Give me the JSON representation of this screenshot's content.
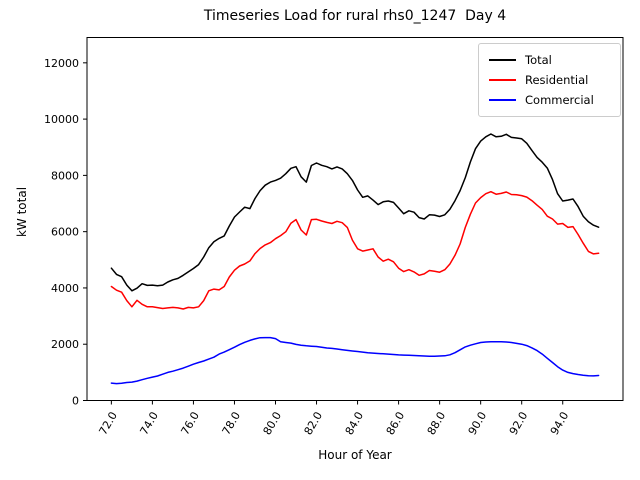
{
  "figure": {
    "title": "Timeseries Load for rural rhs0_1247  Day 4",
    "xlabel": "Hour of Year",
    "ylabel": "kW total"
  },
  "legend": {
    "items": [
      {
        "label": "Total",
        "color": "#000000"
      },
      {
        "label": "Residential",
        "color": "#ff0000"
      },
      {
        "label": "Commercial",
        "color": "#0000ff"
      }
    ]
  },
  "chart_data": {
    "type": "line",
    "title": "Timeseries Load for rural rhs0_1247  Day 4",
    "xlabel": "Hour of Year",
    "ylabel": "kW total",
    "grid": false,
    "legend_position": "upper right",
    "xlim": [
      70.8125,
      96.9375
    ],
    "ylim": [
      0,
      12900
    ],
    "xticks": [
      72,
      74,
      76,
      78,
      80,
      82,
      84,
      86,
      88,
      90,
      92,
      94
    ],
    "xtick_labels": [
      "72.0",
      "74.0",
      "76.0",
      "78.0",
      "80.0",
      "82.0",
      "84.0",
      "86.0",
      "88.0",
      "90.0",
      "92.0",
      "94.0"
    ],
    "yticks": [
      0,
      2000,
      4000,
      6000,
      8000,
      10000,
      12000
    ],
    "ytick_labels": [
      "0",
      "2000",
      "4000",
      "6000",
      "8000",
      "10000",
      "12000"
    ],
    "x": [
      72.0,
      72.25,
      72.5,
      72.75,
      73.0,
      73.25,
      73.5,
      73.75,
      74.0,
      74.25,
      74.5,
      74.75,
      75.0,
      75.25,
      75.5,
      75.75,
      76.0,
      76.25,
      76.5,
      76.75,
      77.0,
      77.25,
      77.5,
      77.75,
      78.0,
      78.25,
      78.5,
      78.75,
      79.0,
      79.25,
      79.5,
      79.75,
      80.0,
      80.25,
      80.5,
      80.75,
      81.0,
      81.25,
      81.5,
      81.75,
      82.0,
      82.25,
      82.5,
      82.75,
      83.0,
      83.25,
      83.5,
      83.75,
      84.0,
      84.25,
      84.5,
      84.75,
      85.0,
      85.25,
      85.5,
      85.75,
      86.0,
      86.25,
      86.5,
      86.75,
      87.0,
      87.25,
      87.5,
      87.75,
      88.0,
      88.25,
      88.5,
      88.75,
      89.0,
      89.25,
      89.5,
      89.75,
      90.0,
      90.25,
      90.5,
      90.75,
      91.0,
      91.25,
      91.5,
      91.75,
      92.0,
      92.25,
      92.5,
      92.75,
      93.0,
      93.25,
      93.5,
      93.75,
      94.0,
      94.25,
      94.5,
      94.75,
      95.0,
      95.25,
      95.5,
      95.75
    ],
    "series": [
      {
        "name": "Total",
        "color": "#000000",
        "values": [
          4700,
          4480,
          4400,
          4100,
          3900,
          3990,
          4150,
          4090,
          4100,
          4080,
          4100,
          4210,
          4290,
          4340,
          4450,
          4570,
          4690,
          4830,
          5100,
          5430,
          5640,
          5760,
          5850,
          6200,
          6520,
          6700,
          6870,
          6820,
          7180,
          7460,
          7650,
          7760,
          7820,
          7900,
          8060,
          8250,
          8310,
          7950,
          7760,
          8350,
          8440,
          8360,
          8310,
          8230,
          8300,
          8230,
          8060,
          7820,
          7480,
          7220,
          7270,
          7120,
          6960,
          7060,
          7090,
          7040,
          6840,
          6640,
          6740,
          6690,
          6500,
          6450,
          6600,
          6590,
          6540,
          6600,
          6800,
          7100,
          7460,
          7920,
          8480,
          8950,
          9220,
          9370,
          9470,
          9370,
          9390,
          9460,
          9350,
          9330,
          9300,
          9140,
          8880,
          8640,
          8470,
          8260,
          7850,
          7350,
          7090,
          7120,
          7160,
          6890,
          6550,
          6350,
          6230,
          6160
        ]
      },
      {
        "name": "Residential",
        "color": "#ff0000",
        "values": [
          4050,
          3920,
          3850,
          3550,
          3330,
          3560,
          3420,
          3330,
          3330,
          3300,
          3270,
          3290,
          3310,
          3290,
          3250,
          3310,
          3290,
          3330,
          3550,
          3900,
          3960,
          3930,
          4050,
          4390,
          4630,
          4780,
          4850,
          4960,
          5220,
          5400,
          5530,
          5610,
          5750,
          5860,
          6000,
          6300,
          6430,
          6060,
          5880,
          6430,
          6440,
          6380,
          6330,
          6290,
          6370,
          6320,
          6150,
          5700,
          5390,
          5310,
          5350,
          5390,
          5100,
          4950,
          5020,
          4930,
          4700,
          4580,
          4650,
          4570,
          4450,
          4500,
          4620,
          4590,
          4560,
          4650,
          4850,
          5160,
          5560,
          6150,
          6620,
          7020,
          7210,
          7350,
          7420,
          7330,
          7360,
          7410,
          7320,
          7310,
          7280,
          7230,
          7100,
          6940,
          6790,
          6550,
          6450,
          6270,
          6290,
          6150,
          6180,
          5900,
          5590,
          5300,
          5210,
          5230
        ]
      },
      {
        "name": "Commercial",
        "color": "#0000ff",
        "values": [
          620,
          600,
          615,
          640,
          655,
          690,
          740,
          790,
          830,
          870,
          935,
          1000,
          1040,
          1095,
          1150,
          1220,
          1290,
          1350,
          1405,
          1470,
          1540,
          1650,
          1720,
          1805,
          1895,
          1985,
          2070,
          2135,
          2190,
          2230,
          2235,
          2235,
          2200,
          2085,
          2060,
          2040,
          1995,
          1965,
          1945,
          1930,
          1920,
          1890,
          1865,
          1850,
          1830,
          1805,
          1780,
          1760,
          1740,
          1720,
          1700,
          1685,
          1670,
          1660,
          1650,
          1635,
          1620,
          1615,
          1610,
          1600,
          1590,
          1580,
          1575,
          1570,
          1580,
          1590,
          1625,
          1700,
          1800,
          1905,
          1965,
          2015,
          2060,
          2080,
          2090,
          2090,
          2090,
          2080,
          2060,
          2030,
          2000,
          1950,
          1870,
          1775,
          1650,
          1500,
          1350,
          1200,
          1080,
          1000,
          955,
          925,
          900,
          880,
          875,
          890
        ]
      }
    ]
  }
}
